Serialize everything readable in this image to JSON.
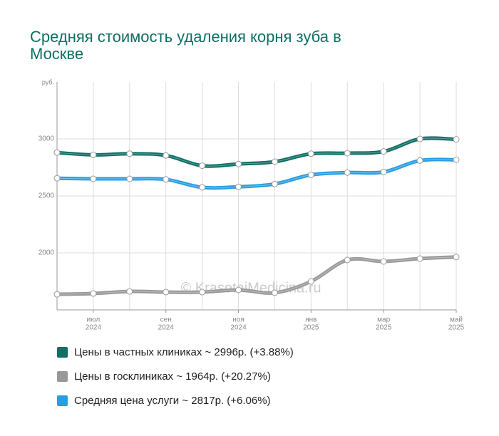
{
  "chart_data": {
    "type": "line",
    "title": [
      "Средняя стоимость удаления корня зуба в",
      "Москве"
    ],
    "y_unit": "руб.",
    "watermark": "© KrasotaiMedicina.ru",
    "categories": [
      null,
      [
        "июл",
        "2024"
      ],
      null,
      [
        "сен",
        "2024"
      ],
      null,
      [
        "ноя",
        "2024"
      ],
      null,
      [
        "янв",
        "2025"
      ],
      null,
      [
        "мар",
        "2025"
      ],
      null,
      [
        "май",
        "2025"
      ]
    ],
    "series": [
      {
        "name": "Цены в частных клиниках ~ 2996р. (+3.88%)",
        "color": "#0e6f64",
        "values": [
          2880,
          2860,
          2870,
          2855,
          2765,
          2780,
          2800,
          2870,
          2875,
          2890,
          3000,
          2996
        ]
      },
      {
        "name": "Цены в госклиниках ~ 1964р. (+20.27%)",
        "color": "#999999",
        "values": [
          1637,
          1644,
          1662,
          1656,
          1656,
          1675,
          1650,
          1750,
          1938,
          1925,
          1950,
          1964
        ]
      },
      {
        "name": "Средняя цена услуги ~ 2817р. (+6.06%)",
        "color": "#289ee0",
        "values": [
          2655,
          2650,
          2650,
          2645,
          2575,
          2580,
          2605,
          2685,
          2705,
          2710,
          2810,
          2817
        ]
      }
    ],
    "ylim": [
      1500,
      3500
    ],
    "yticks": [
      2000,
      2500,
      3000
    ],
    "grid": true
  }
}
